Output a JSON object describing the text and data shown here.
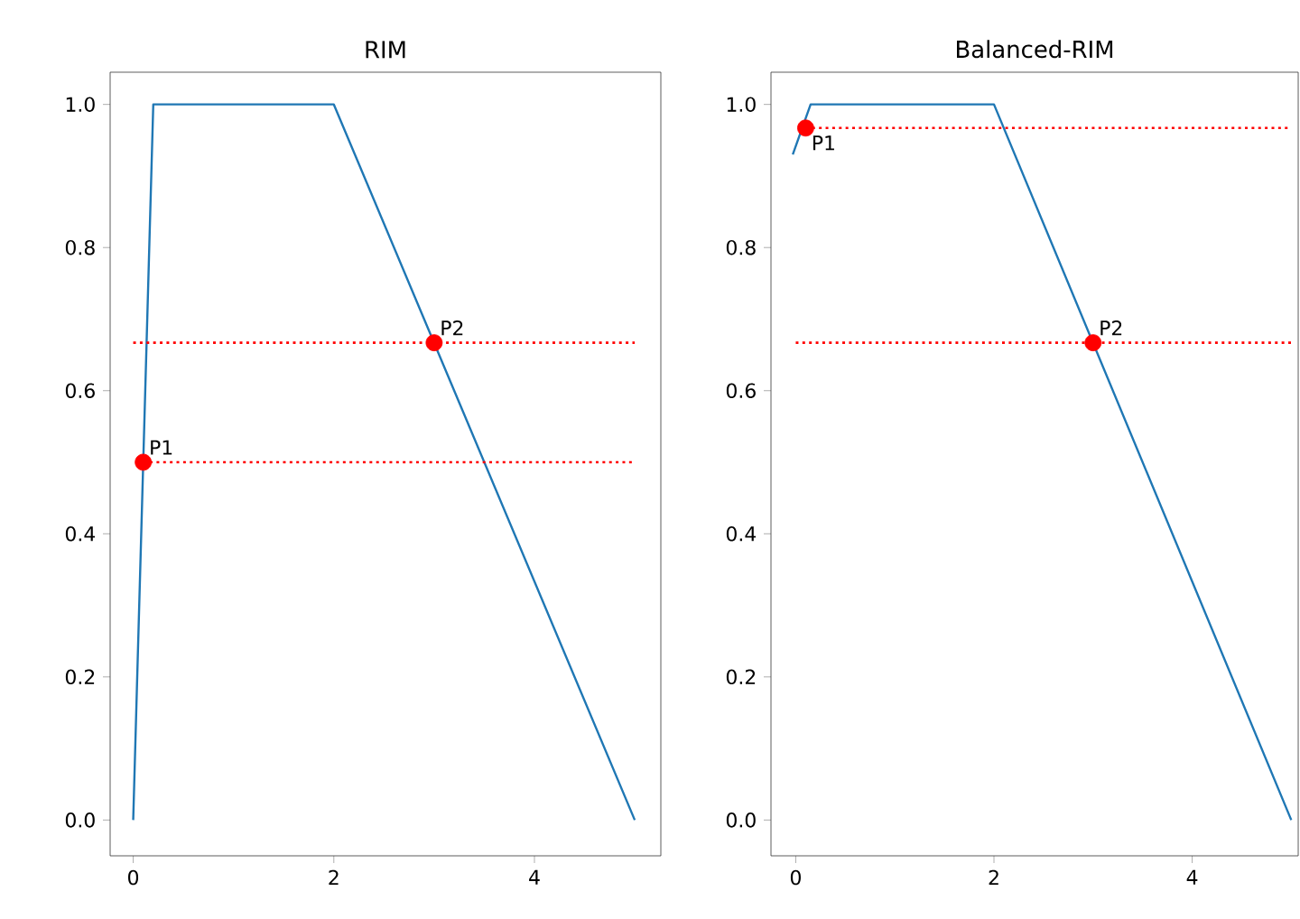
{
  "chart_data": [
    {
      "type": "line",
      "title": "RIM",
      "xlim": [
        -0.23,
        5.26
      ],
      "ylim": [
        -0.05,
        1.045
      ],
      "xticks": [
        0,
        2,
        4
      ],
      "yticks": [
        {
          "value": 0,
          "label": "0.0"
        },
        {
          "value": 0.2,
          "label": "0.2"
        },
        {
          "value": 0.4,
          "label": "0.4"
        },
        {
          "value": 0.6,
          "label": "0.6"
        },
        {
          "value": 0.8,
          "label": "0.8"
        },
        {
          "value": 1,
          "label": "1.0"
        }
      ],
      "series": [
        {
          "color": "#1f77b4",
          "x": [
            0,
            0.2,
            2,
            5
          ],
          "values": [
            0,
            1,
            1,
            0
          ]
        },
        {
          "color": "#ff0000",
          "line_style": "dotted",
          "x": [
            0,
            5
          ],
          "values": [
            0.667,
            0.667
          ]
        },
        {
          "color": "#ff0000",
          "line_style": "dotted",
          "x": [
            0.1,
            5
          ],
          "values": [
            0.5,
            0.5
          ]
        },
        {
          "type": "scatter",
          "marker": "circle",
          "color": "#ff0000",
          "x": [
            0.1,
            3
          ],
          "values": [
            0.5,
            0.667
          ]
        }
      ],
      "annotations": [
        "P1",
        "P2"
      ]
    },
    {
      "type": "line",
      "title": "Balanced-RIM",
      "xlim": [
        -0.25,
        5.07
      ],
      "ylim": [
        -0.05,
        1.045
      ],
      "xticks": [
        0,
        2,
        4
      ],
      "yticks": [
        {
          "value": 0,
          "label": "0.0"
        },
        {
          "value": 0.2,
          "label": "0.2"
        },
        {
          "value": 0.4,
          "label": "0.4"
        },
        {
          "value": 0.6,
          "label": "0.6"
        },
        {
          "value": 0.8,
          "label": "0.8"
        },
        {
          "value": 1,
          "label": "1.0"
        }
      ],
      "series": [
        {
          "color": "#1f77b4",
          "x": [
            -0.03,
            0.15,
            2,
            5
          ],
          "values": [
            0.93,
            1,
            1,
            0
          ]
        },
        {
          "color": "#ff0000",
          "line_style": "dotted",
          "x": [
            0,
            5
          ],
          "values": [
            0.667,
            0.667
          ]
        },
        {
          "color": "#ff0000",
          "line_style": "dotted",
          "x": [
            0.1,
            5
          ],
          "values": [
            0.967,
            0.967
          ]
        },
        {
          "type": "scatter",
          "marker": "circle",
          "color": "#ff0000",
          "x": [
            0.1,
            3
          ],
          "values": [
            0.967,
            0.667
          ]
        }
      ],
      "annotations": [
        "P1",
        "P2"
      ]
    }
  ]
}
